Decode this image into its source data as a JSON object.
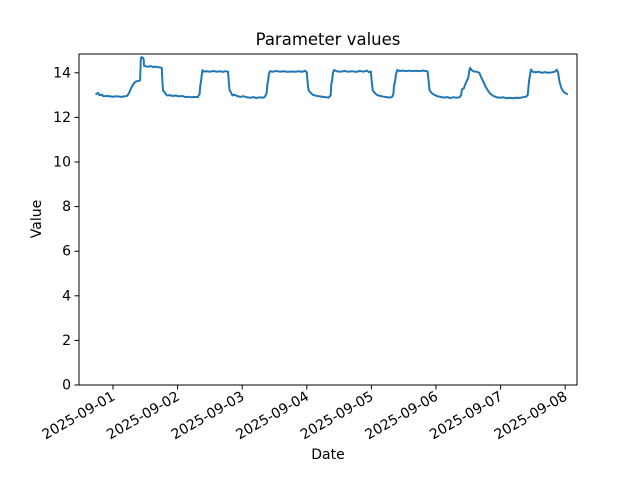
{
  "figure": {
    "background_color": "#ffffff",
    "title": "Parameter values"
  },
  "chart_data": {
    "type": "line",
    "title": "Parameter values",
    "xlabel": "Date",
    "ylabel": "Value",
    "grid": false,
    "legend": "none",
    "line_color": "#1f77b4",
    "axis_color": "#000000",
    "x_tick_labels": [
      "2025-09-01",
      "2025-09-02",
      "2025-09-03",
      "2025-09-04",
      "2025-09-05",
      "2025-09-06",
      "2025-09-07",
      "2025-09-08"
    ],
    "x_tick_days": [
      0,
      1,
      2,
      3,
      4,
      5,
      6,
      7
    ],
    "x_tick_rotation_deg": 30,
    "y_ticks": [
      0,
      2,
      4,
      6,
      8,
      10,
      12,
      14
    ],
    "xlim_days": [
      -0.5263,
      7.1827
    ],
    "ylim": [
      0,
      14.843
    ],
    "series": [
      {
        "name": "Parameter values",
        "x_unit": "days_from_2025-09-01_00:00",
        "points": [
          [
            -0.26,
            13.05
          ],
          [
            -0.23,
            13.1
          ],
          [
            -0.21,
            13.0
          ],
          [
            -0.17,
            13.02
          ],
          [
            -0.15,
            12.95
          ],
          [
            -0.08,
            12.96
          ],
          [
            0.0,
            12.93
          ],
          [
            0.06,
            12.95
          ],
          [
            0.12,
            12.92
          ],
          [
            0.18,
            12.94
          ],
          [
            0.22,
            12.97
          ],
          [
            0.25,
            13.1
          ],
          [
            0.27,
            13.25
          ],
          [
            0.3,
            13.42
          ],
          [
            0.33,
            13.55
          ],
          [
            0.36,
            13.62
          ],
          [
            0.4,
            13.64
          ],
          [
            0.42,
            13.66
          ],
          [
            0.43,
            14.6
          ],
          [
            0.44,
            14.7
          ],
          [
            0.46,
            14.68
          ],
          [
            0.475,
            14.6
          ],
          [
            0.48,
            14.32
          ],
          [
            0.5,
            14.3
          ],
          [
            0.54,
            14.27
          ],
          [
            0.58,
            14.3
          ],
          [
            0.62,
            14.26
          ],
          [
            0.66,
            14.28
          ],
          [
            0.7,
            14.25
          ],
          [
            0.73,
            14.24
          ],
          [
            0.755,
            14.21
          ],
          [
            0.765,
            13.6
          ],
          [
            0.775,
            13.2
          ],
          [
            0.8,
            13.12
          ],
          [
            0.82,
            13.03
          ],
          [
            0.84,
            12.98
          ],
          [
            0.88,
            13.0
          ],
          [
            0.92,
            12.96
          ],
          [
            0.97,
            12.98
          ],
          [
            1.02,
            12.94
          ],
          [
            1.07,
            12.96
          ],
          [
            1.12,
            12.91
          ],
          [
            1.17,
            12.93
          ],
          [
            1.22,
            12.9
          ],
          [
            1.27,
            12.92
          ],
          [
            1.31,
            12.9
          ],
          [
            1.34,
            13.05
          ],
          [
            1.35,
            13.4
          ],
          [
            1.36,
            13.58
          ],
          [
            1.375,
            13.92
          ],
          [
            1.385,
            14.12
          ],
          [
            1.4,
            14.06
          ],
          [
            1.45,
            14.07
          ],
          [
            1.5,
            14.05
          ],
          [
            1.55,
            14.08
          ],
          [
            1.6,
            14.05
          ],
          [
            1.65,
            14.07
          ],
          [
            1.7,
            14.04
          ],
          [
            1.74,
            14.07
          ],
          [
            1.78,
            14.05
          ],
          [
            1.795,
            13.5
          ],
          [
            1.805,
            13.22
          ],
          [
            1.83,
            13.1
          ],
          [
            1.85,
            12.98
          ],
          [
            1.88,
            13.02
          ],
          [
            1.92,
            12.96
          ],
          [
            1.97,
            12.92
          ],
          [
            2.02,
            12.95
          ],
          [
            2.07,
            12.9
          ],
          [
            2.12,
            12.88
          ],
          [
            2.17,
            12.91
          ],
          [
            2.22,
            12.87
          ],
          [
            2.27,
            12.9
          ],
          [
            2.32,
            12.88
          ],
          [
            2.35,
            12.92
          ],
          [
            2.38,
            13.1
          ],
          [
            2.39,
            13.5
          ],
          [
            2.4,
            13.62
          ],
          [
            2.415,
            13.97
          ],
          [
            2.43,
            14.07
          ],
          [
            2.48,
            14.05
          ],
          [
            2.53,
            14.08
          ],
          [
            2.58,
            14.05
          ],
          [
            2.64,
            14.07
          ],
          [
            2.7,
            14.04
          ],
          [
            2.76,
            14.06
          ],
          [
            2.82,
            14.05
          ],
          [
            2.88,
            14.07
          ],
          [
            2.93,
            14.04
          ],
          [
            2.97,
            14.1
          ],
          [
            3.0,
            14.02
          ],
          [
            3.02,
            13.35
          ],
          [
            3.03,
            13.2
          ],
          [
            3.06,
            13.1
          ],
          [
            3.1,
            13.0
          ],
          [
            3.15,
            12.97
          ],
          [
            3.2,
            12.94
          ],
          [
            3.25,
            12.92
          ],
          [
            3.3,
            12.9
          ],
          [
            3.34,
            12.89
          ],
          [
            3.37,
            13.0
          ],
          [
            3.38,
            13.5
          ],
          [
            3.39,
            13.62
          ],
          [
            3.405,
            14.0
          ],
          [
            3.42,
            14.12
          ],
          [
            3.46,
            14.07
          ],
          [
            3.52,
            14.05
          ],
          [
            3.58,
            14.08
          ],
          [
            3.64,
            14.05
          ],
          [
            3.7,
            14.07
          ],
          [
            3.76,
            14.04
          ],
          [
            3.82,
            14.08
          ],
          [
            3.88,
            14.05
          ],
          [
            3.93,
            14.1
          ],
          [
            3.96,
            14.03
          ],
          [
            3.99,
            14.06
          ],
          [
            4.01,
            13.5
          ],
          [
            4.02,
            13.22
          ],
          [
            4.05,
            13.1
          ],
          [
            4.09,
            13.0
          ],
          [
            4.14,
            12.96
          ],
          [
            4.19,
            12.93
          ],
          [
            4.24,
            12.91
          ],
          [
            4.29,
            12.89
          ],
          [
            4.32,
            12.92
          ],
          [
            4.34,
            13.05
          ],
          [
            4.35,
            13.45
          ],
          [
            4.365,
            13.58
          ],
          [
            4.38,
            13.92
          ],
          [
            4.4,
            14.12
          ],
          [
            4.44,
            14.08
          ],
          [
            4.49,
            14.1
          ],
          [
            4.54,
            14.07
          ],
          [
            4.59,
            14.1
          ],
          [
            4.64,
            14.07
          ],
          [
            4.69,
            14.09
          ],
          [
            4.74,
            14.07
          ],
          [
            4.79,
            14.1
          ],
          [
            4.84,
            14.08
          ],
          [
            4.87,
            14.06
          ],
          [
            4.89,
            13.5
          ],
          [
            4.9,
            13.22
          ],
          [
            4.93,
            13.1
          ],
          [
            4.97,
            13.02
          ],
          [
            5.02,
            12.95
          ],
          [
            5.07,
            12.92
          ],
          [
            5.12,
            12.89
          ],
          [
            5.17,
            12.91
          ],
          [
            5.22,
            12.87
          ],
          [
            5.27,
            12.9
          ],
          [
            5.32,
            12.88
          ],
          [
            5.36,
            12.9
          ],
          [
            5.39,
            13.0
          ],
          [
            5.4,
            13.25
          ],
          [
            5.43,
            13.3
          ],
          [
            5.45,
            13.46
          ],
          [
            5.47,
            13.6
          ],
          [
            5.5,
            13.78
          ],
          [
            5.515,
            14.1
          ],
          [
            5.53,
            14.22
          ],
          [
            5.55,
            14.12
          ],
          [
            5.59,
            14.06
          ],
          [
            5.63,
            14.05
          ],
          [
            5.67,
            14.0
          ],
          [
            5.7,
            13.8
          ],
          [
            5.73,
            13.62
          ],
          [
            5.76,
            13.42
          ],
          [
            5.8,
            13.22
          ],
          [
            5.84,
            13.06
          ],
          [
            5.89,
            12.96
          ],
          [
            5.94,
            12.9
          ],
          [
            5.99,
            12.88
          ],
          [
            6.04,
            12.9
          ],
          [
            6.09,
            12.86
          ],
          [
            6.14,
            12.88
          ],
          [
            6.19,
            12.86
          ],
          [
            6.24,
            12.88
          ],
          [
            6.29,
            12.87
          ],
          [
            6.34,
            12.9
          ],
          [
            6.39,
            12.92
          ],
          [
            6.42,
            13.0
          ],
          [
            6.44,
            13.6
          ],
          [
            6.45,
            13.82
          ],
          [
            6.47,
            14.15
          ],
          [
            6.49,
            14.06
          ],
          [
            6.54,
            14.02
          ],
          [
            6.59,
            14.05
          ],
          [
            6.64,
            14.0
          ],
          [
            6.69,
            14.03
          ],
          [
            6.74,
            14.0
          ],
          [
            6.79,
            14.02
          ],
          [
            6.84,
            14.05
          ],
          [
            6.87,
            14.14
          ],
          [
            6.89,
            14.02
          ],
          [
            6.91,
            13.62
          ],
          [
            6.94,
            13.32
          ],
          [
            6.97,
            13.16
          ],
          [
            7.0,
            13.1
          ],
          [
            7.03,
            13.04
          ]
        ]
      }
    ]
  }
}
